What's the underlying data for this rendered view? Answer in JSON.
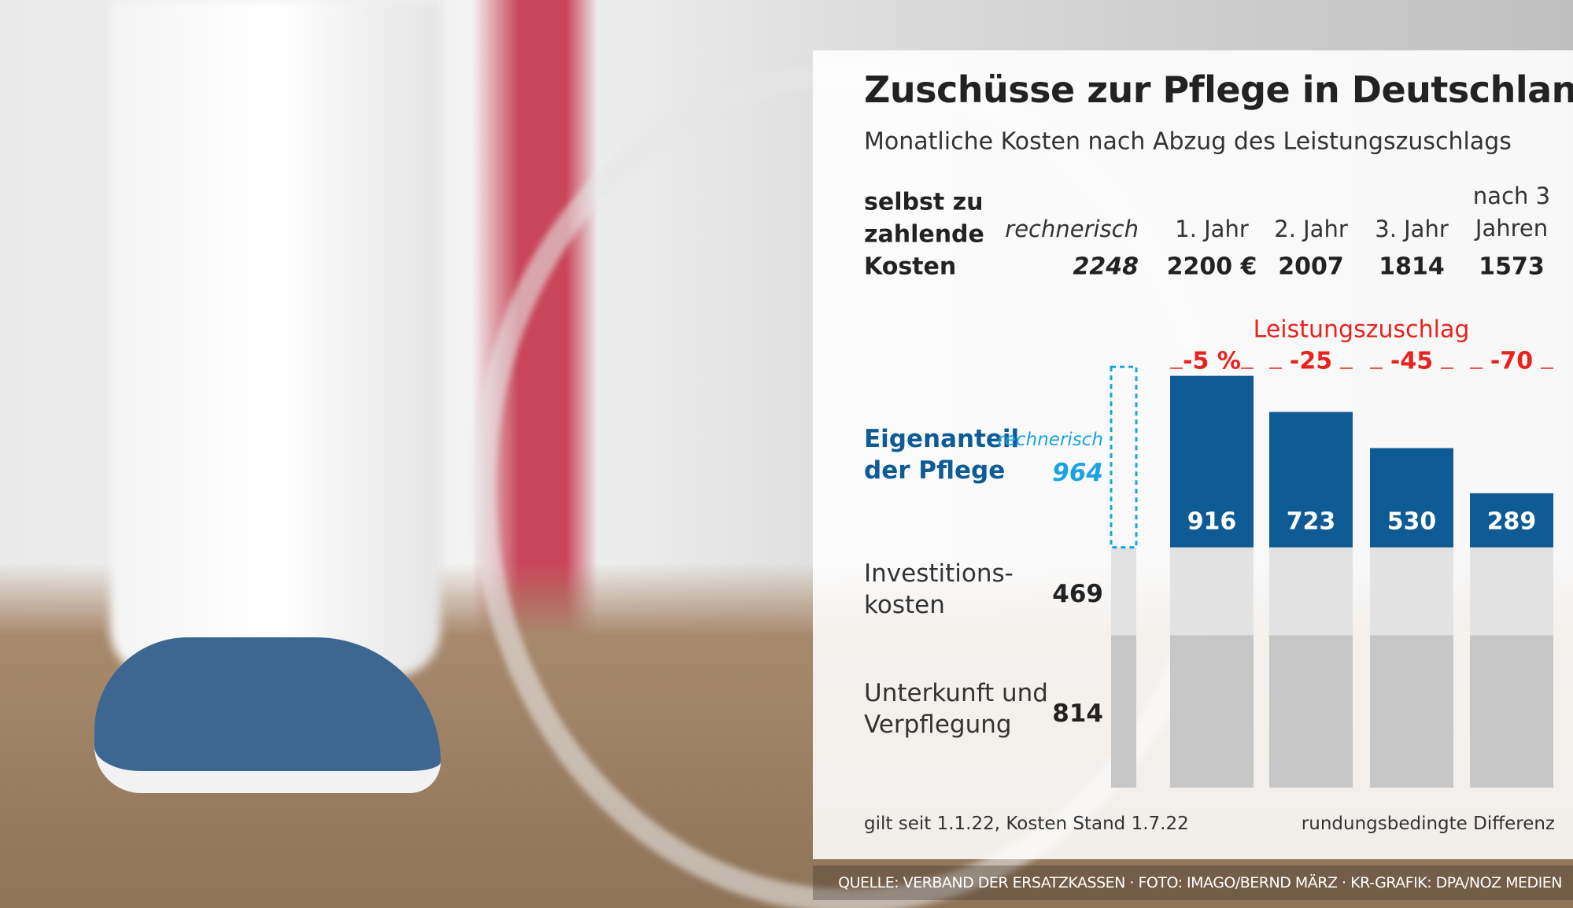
{
  "chart_data": {
    "type": "bar",
    "stacked": true,
    "title": "Zuschüsse zur Pflege in Deutschland",
    "subtitle": "Monatliche Kosten nach Abzug des Leistungszuschlags",
    "categories": [
      "rechnerisch",
      "1. Jahr",
      "2. Jahr",
      "3. Jahr",
      "nach 3 Jahren"
    ],
    "totals_label": "selbst zu zahlende Kosten",
    "totals": [
      2248,
      2200,
      2007,
      1814,
      1573
    ],
    "totals_value_labels": [
      "2248",
      "2200 €",
      "2007",
      "1814",
      "1573"
    ],
    "surcharge": {
      "label": "Leistungszuschlag",
      "values": [
        null,
        -5,
        -25,
        -45,
        -70
      ],
      "value_labels": [
        null,
        "-5 %",
        "-25",
        "-45",
        "-70"
      ],
      "color": "#e8231e"
    },
    "series": [
      {
        "name": "Unterkunft und Verpflegung",
        "color": "#c6c6c6",
        "values": [
          814,
          814,
          814,
          814,
          814
        ]
      },
      {
        "name": "Investitions- kosten",
        "color": "#e2e2e2",
        "values": [
          469,
          469,
          469,
          469,
          469
        ]
      },
      {
        "name": "Eigenanteil der Pflege",
        "color": "#0e5b95",
        "values": [
          964,
          916,
          723,
          530,
          289
        ]
      }
    ],
    "estimated_color": "#1aa3e0",
    "notes": [
      "gilt seit 1.1.22, Kosten Stand 1.7.22",
      "rundungsbedingte Differenz"
    ],
    "source": "QUELLE: VERBAND DER ERSATZKASSEN · FOTO: IMAGO/BERND MÄRZ · KR-GRAFIK: DPA/NOZ MEDIEN"
  }
}
